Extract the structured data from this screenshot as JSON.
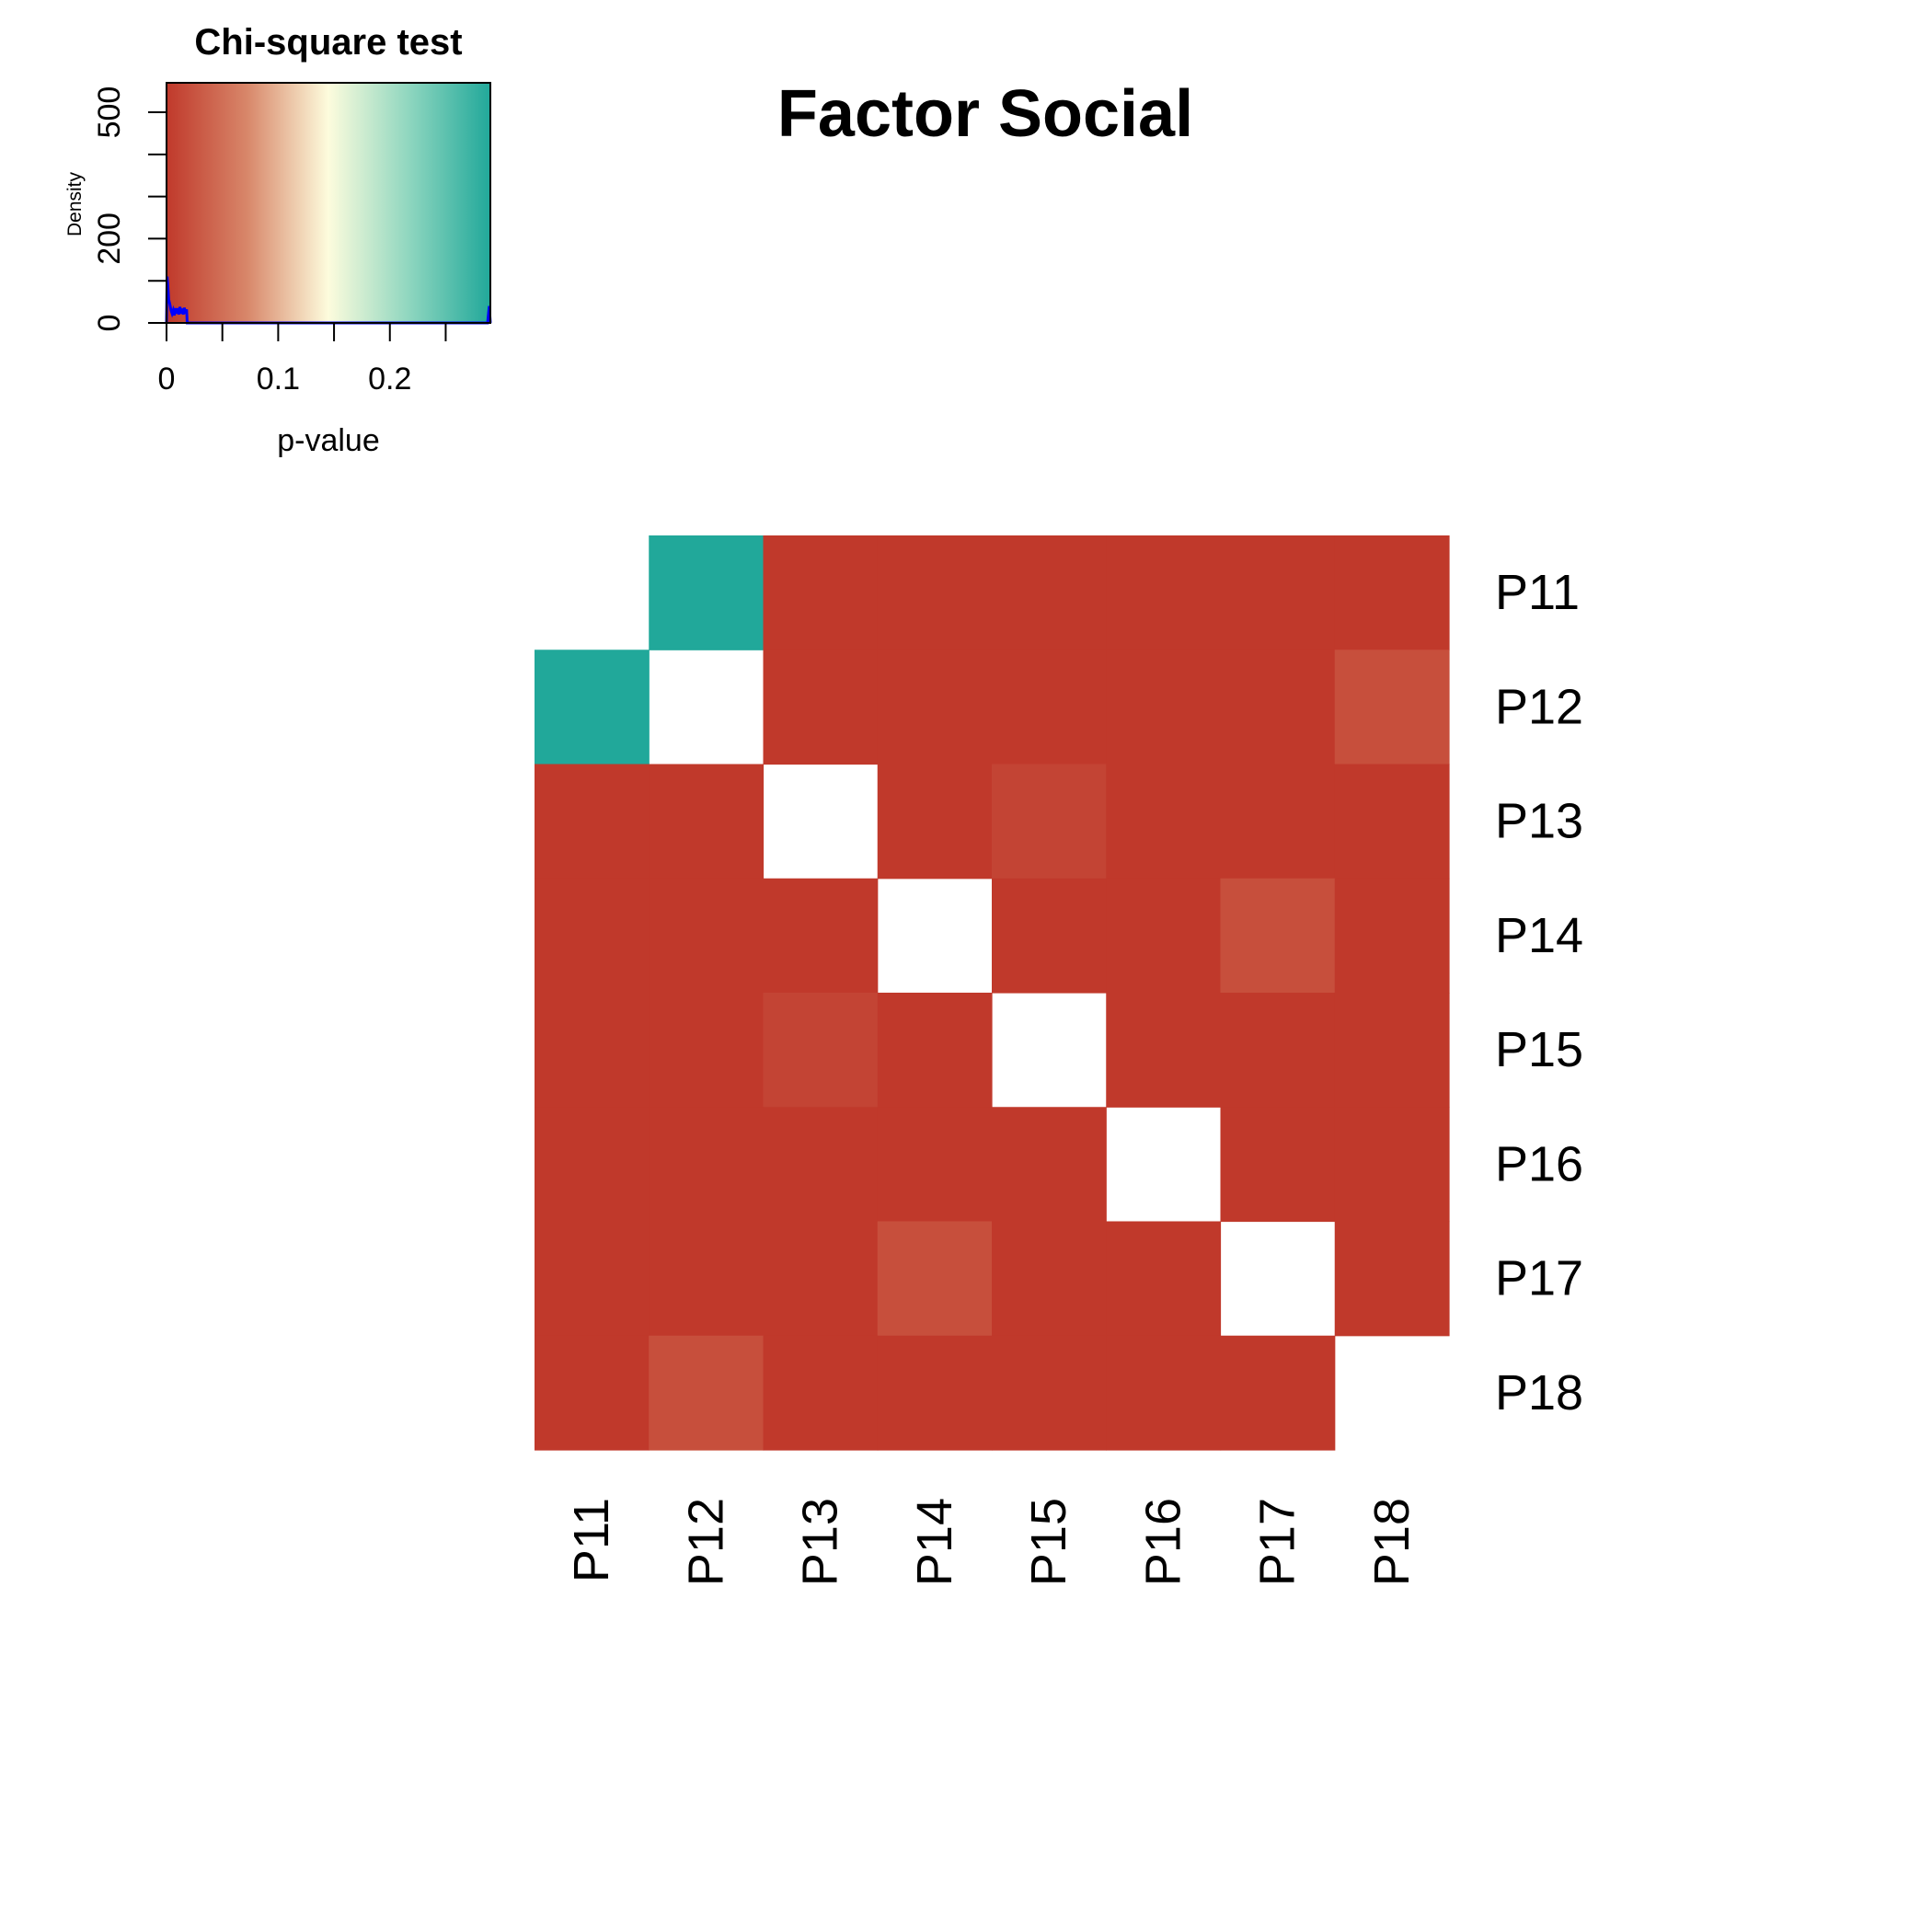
{
  "chart_data": {
    "type": "heatmap",
    "title": "Factor Social",
    "rows": [
      "P11",
      "P12",
      "P13",
      "P14",
      "P15",
      "P16",
      "P17",
      "P18"
    ],
    "columns": [
      "P11",
      "P12",
      "P13",
      "P14",
      "P15",
      "P16",
      "P17",
      "P18"
    ],
    "value_label": "p-value",
    "values": [
      [
        null,
        0.29,
        0.0,
        0.0,
        0.0,
        0.0,
        0.0,
        0.0
      ],
      [
        0.29,
        null,
        0.0,
        0.0,
        0.0,
        0.0,
        0.0,
        0.02
      ],
      [
        0.0,
        0.0,
        null,
        0.0,
        0.01,
        0.0,
        0.0,
        0.0
      ],
      [
        0.0,
        0.0,
        0.0,
        null,
        0.0,
        0.0,
        0.02,
        0.0
      ],
      [
        0.0,
        0.0,
        0.01,
        0.0,
        null,
        0.0,
        0.0,
        0.0
      ],
      [
        0.0,
        0.0,
        0.0,
        0.0,
        0.0,
        null,
        0.0,
        0.0
      ],
      [
        0.0,
        0.0,
        0.0,
        0.02,
        0.0,
        0.0,
        null,
        0.0
      ],
      [
        0.0,
        0.02,
        0.0,
        0.0,
        0.0,
        0.0,
        0.0,
        null
      ]
    ],
    "color_key": {
      "title": "Chi-square test",
      "xlabel": "p-value",
      "ylabel": "Density",
      "range": [
        0,
        0.29
      ],
      "x_ticks": [
        0,
        0.05,
        0.1,
        0.15,
        0.2,
        0.25
      ],
      "x_tick_labels": [
        "0",
        "",
        "0.1",
        "",
        "0.2",
        ""
      ],
      "y_ticks": [
        0,
        100,
        200,
        300,
        400,
        500
      ],
      "y_tick_labels": [
        "0",
        "",
        "200",
        "",
        "",
        "500"
      ],
      "y_range": [
        0,
        570
      ],
      "colors": [
        "#c0392b",
        "#d8876a",
        "#fdfcdd",
        "#8ed6bf",
        "#21a89a"
      ],
      "density_color": "#0000ff",
      "density": [
        [
          0.0,
          0
        ],
        [
          0.0005,
          110
        ],
        [
          0.001,
          95
        ],
        [
          0.002,
          55
        ],
        [
          0.003,
          45
        ],
        [
          0.004,
          30
        ],
        [
          0.005,
          22
        ],
        [
          0.006,
          30
        ],
        [
          0.007,
          18
        ],
        [
          0.008,
          35
        ],
        [
          0.009,
          22
        ],
        [
          0.01,
          35
        ],
        [
          0.011,
          20
        ],
        [
          0.012,
          38
        ],
        [
          0.013,
          22
        ],
        [
          0.014,
          34
        ],
        [
          0.015,
          20
        ],
        [
          0.016,
          36
        ],
        [
          0.017,
          22
        ],
        [
          0.018,
          32
        ],
        [
          0.0185,
          0
        ],
        [
          0.2875,
          0
        ],
        [
          0.289,
          40
        ],
        [
          0.29,
          0
        ]
      ]
    }
  }
}
